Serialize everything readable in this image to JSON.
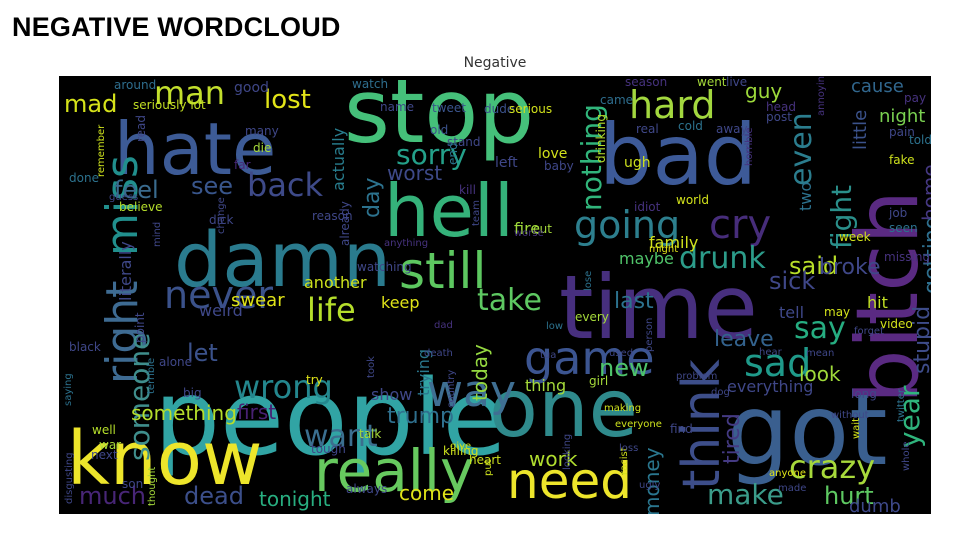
{
  "page": {
    "title": "NEGATIVE WORDCLOUD"
  },
  "figure": {
    "title": "Negative"
  },
  "colors": {
    "background": "#000000"
  },
  "cloud": {
    "words": [
      {
        "id": "people",
        "text": "people",
        "color": "#31a4a4"
      },
      {
        "id": "stop",
        "text": "stop",
        "color": "#45c07a"
      },
      {
        "id": "bad",
        "text": "bad",
        "color": "#3d5a98"
      },
      {
        "id": "time",
        "text": "time",
        "color": "#472f7e"
      },
      {
        "id": "bitch",
        "text": "bitch",
        "color": "#5a2a82"
      },
      {
        "id": "got",
        "text": "got",
        "color": "#3a5f8f"
      },
      {
        "id": "hate",
        "text": "hate",
        "color": "#3d5b96"
      },
      {
        "id": "damn",
        "text": "damn",
        "color": "#2a7b8e"
      },
      {
        "id": "know",
        "text": "know",
        "color": "#ede52b"
      },
      {
        "id": "hell",
        "text": "hell",
        "color": "#35b27a"
      },
      {
        "id": "one",
        "text": "one",
        "color": "#2f8a8c"
      },
      {
        "id": "really",
        "text": "really",
        "color": "#67c95f"
      },
      {
        "id": "need",
        "text": "need",
        "color": "#ede52b"
      },
      {
        "id": "still",
        "text": "still",
        "color": "#5dc760"
      },
      {
        "id": "think",
        "text": "think",
        "color": "#3d4e8a"
      },
      {
        "id": "game",
        "text": "game",
        "color": "#3c5591"
      },
      {
        "id": "right",
        "text": "right",
        "color": "#3e6b92"
      },
      {
        "id": "miss",
        "text": "miss",
        "color": "#218f8d"
      },
      {
        "id": "cry",
        "text": "cry",
        "color": "#472d7b"
      },
      {
        "id": "going",
        "text": "going",
        "color": "#2d7f8e"
      },
      {
        "id": "hard",
        "text": "hard",
        "color": "#a3d83f"
      },
      {
        "id": "man",
        "text": "man",
        "color": "#c3df2d"
      },
      {
        "id": "lost",
        "text": "lost",
        "color": "#e2e418"
      },
      {
        "id": "never",
        "text": "never",
        "color": "#3b528b"
      },
      {
        "id": "way",
        "text": "way",
        "color": "#3f6f93"
      },
      {
        "id": "crazy",
        "text": "crazy",
        "color": "#a7d93b"
      },
      {
        "id": "wrong",
        "text": "wrong",
        "color": "#24878e"
      },
      {
        "id": "life",
        "text": "life",
        "color": "#b5de2b"
      },
      {
        "id": "someone",
        "text": "someone",
        "color": "#3f8e8c"
      },
      {
        "id": "back",
        "text": "back",
        "color": "#3e4a89"
      },
      {
        "id": "sorry",
        "text": "sorry",
        "color": "#24a08a"
      },
      {
        "id": "say",
        "text": "say",
        "color": "#26ad81"
      },
      {
        "id": "sad",
        "text": "sad",
        "color": "#1f9a8a"
      },
      {
        "id": "take",
        "text": "take",
        "color": "#5ec962"
      },
      {
        "id": "want",
        "text": "want",
        "color": "#3b6f8f"
      },
      {
        "id": "make",
        "text": "make",
        "color": "#3b9c8a"
      },
      {
        "id": "drunk",
        "text": "drunk",
        "color": "#2c9c8a"
      },
      {
        "id": "even",
        "text": "even",
        "color": "#2b7d8e"
      },
      {
        "id": "fight",
        "text": "fight",
        "color": "#2a8f8a"
      },
      {
        "id": "year",
        "text": "year",
        "color": "#2fb47c"
      },
      {
        "id": "nothing",
        "text": "nothing",
        "color": "#31b57b"
      },
      {
        "id": "mad",
        "text": "mad",
        "color": "#d5e21a"
      },
      {
        "id": "feel",
        "text": "feel",
        "color": "#3a6b8e"
      },
      {
        "id": "see",
        "text": "see",
        "color": "#39568c"
      },
      {
        "id": "much",
        "text": "much",
        "color": "#482677"
      },
      {
        "id": "dead",
        "text": "dead",
        "color": "#3c4f8a"
      },
      {
        "id": "hurt",
        "text": "hurt",
        "color": "#5ec962"
      },
      {
        "id": "trump",
        "text": "trump",
        "color": "#2f708e"
      },
      {
        "id": "new",
        "text": "new",
        "color": "#4ec36b"
      },
      {
        "id": "stupid",
        "text": "stupid",
        "color": "#3e4c8a"
      },
      {
        "id": "getting",
        "text": "getting",
        "color": "#2e6f8e"
      },
      {
        "id": "said",
        "text": "said",
        "color": "#b8de29"
      },
      {
        "id": "tonight",
        "text": "tonight",
        "color": "#28ae80"
      },
      {
        "id": "come",
        "text": "come",
        "color": "#dfe318"
      },
      {
        "id": "work",
        "text": "work",
        "color": "#b0dd2f"
      },
      {
        "id": "guy",
        "text": "guy",
        "color": "#9dd93b"
      },
      {
        "id": "day",
        "text": "day",
        "color": "#2c728e"
      },
      {
        "id": "today",
        "text": "today",
        "color": "#94d840"
      },
      {
        "id": "tired",
        "text": "tired",
        "color": "#443a83"
      },
      {
        "id": "let",
        "text": "let",
        "color": "#3b528b"
      },
      {
        "id": "sick",
        "text": "sick",
        "color": "#3f4788"
      },
      {
        "id": "look",
        "text": "look",
        "color": "#9fda3a"
      },
      {
        "id": "leave",
        "text": "leave",
        "color": "#33628d"
      },
      {
        "id": "broke",
        "text": "broke",
        "color": "#3f4788"
      },
      {
        "id": "last",
        "text": "last",
        "color": "#2c728e"
      },
      {
        "id": "money",
        "text": "money",
        "color": "#2a768e"
      },
      {
        "id": "worst",
        "text": "worst",
        "color": "#3e4a89"
      },
      {
        "id": "first",
        "text": "first",
        "color": "#482173"
      },
      {
        "id": "dumb",
        "text": "dumb",
        "color": "#3e4989"
      },
      {
        "id": "home",
        "text": "home",
        "color": "#453882"
      },
      {
        "id": "cause",
        "text": "cause",
        "color": "#31678e"
      },
      {
        "id": "night",
        "text": "night",
        "color": "#7ad151"
      },
      {
        "id": "little",
        "text": "little",
        "color": "#3b528b"
      },
      {
        "id": "something",
        "text": "something",
        "color": "#b5de2b"
      },
      {
        "id": "literally",
        "text": "literally",
        "color": "#3f4889"
      },
      {
        "id": "weird",
        "text": "weird",
        "color": "#3f4889"
      },
      {
        "id": "swear",
        "text": "swear",
        "color": "#dfe318"
      },
      {
        "id": "another",
        "text": "another",
        "color": "#cde11d"
      },
      {
        "id": "family",
        "text": "family",
        "color": "#d2e21b"
      },
      {
        "id": "maybe",
        "text": "maybe",
        "color": "#50c46a"
      },
      {
        "id": "tell",
        "text": "tell",
        "color": "#3f4889"
      },
      {
        "id": "everything",
        "text": "everything",
        "color": "#3f4788"
      },
      {
        "id": "show",
        "text": "show",
        "color": "#3f4788"
      },
      {
        "id": "thing",
        "text": "thing",
        "color": "#a5da3a"
      },
      {
        "id": "fire",
        "text": "fire",
        "color": "#9fda3a"
      },
      {
        "id": "actually",
        "text": "actually",
        "color": "#287d8e"
      },
      {
        "id": "keep",
        "text": "keep",
        "color": "#dfe318"
      },
      {
        "id": "trying",
        "text": "trying",
        "color": "#2a788e"
      },
      {
        "id": "two",
        "text": "two",
        "color": "#2c728e"
      },
      {
        "id": "hit",
        "text": "hit",
        "color": "#c2df23"
      },
      {
        "id": "good",
        "text": "good",
        "color": "#3f4788"
      },
      {
        "id": "tweet",
        "text": "tweet",
        "color": "#3a548c"
      },
      {
        "id": "dude",
        "text": "dude",
        "color": "#3b528b"
      },
      {
        "id": "serious",
        "text": "serious",
        "color": "#d2e21b"
      },
      {
        "id": "around",
        "text": "around",
        "color": "#2e6e8e"
      },
      {
        "id": "watch",
        "text": "watch",
        "color": "#2e6e8e"
      },
      {
        "id": "seriously-lot",
        "text": "seriously lot",
        "color": "#c2df23"
      },
      {
        "id": "remember",
        "text": "remember",
        "color": "#cde11d"
      },
      {
        "id": "many",
        "text": "many",
        "color": "#3f4788"
      },
      {
        "id": "die",
        "text": "die",
        "color": "#a5da3a"
      },
      {
        "id": "far",
        "text": "far",
        "color": "#482878"
      },
      {
        "id": "name",
        "text": "name",
        "color": "#3f4788"
      },
      {
        "id": "old",
        "text": "old",
        "color": "#3b528b"
      },
      {
        "id": "stand",
        "text": "stand",
        "color": "#3f4788"
      },
      {
        "id": "end",
        "text": "end",
        "color": "#2a768e"
      },
      {
        "id": "love",
        "text": "love",
        "color": "#d2e21b"
      },
      {
        "id": "left",
        "text": "left",
        "color": "#3f4788"
      },
      {
        "id": "baby",
        "text": "baby",
        "color": "#3f4788"
      },
      {
        "id": "drinking",
        "text": "drinking",
        "color": "#b5de2b"
      },
      {
        "id": "ugh",
        "text": "ugh",
        "color": "#cde11d"
      },
      {
        "id": "real",
        "text": "real",
        "color": "#3f4788"
      },
      {
        "id": "cold",
        "text": "cold",
        "color": "#2c728e"
      },
      {
        "id": "came",
        "text": "came",
        "color": "#2e6e8e"
      },
      {
        "id": "went",
        "text": "went",
        "color": "#a5da3a"
      },
      {
        "id": "live",
        "text": "live",
        "color": "#3f4788"
      },
      {
        "id": "season",
        "text": "season",
        "color": "#46327e"
      },
      {
        "id": "head",
        "text": "head",
        "color": "#46327e"
      },
      {
        "id": "post",
        "text": "post",
        "color": "#3f4788"
      },
      {
        "id": "away",
        "text": "away",
        "color": "#3f4788"
      },
      {
        "id": "annoying",
        "text": "annoying",
        "color": "#46327e"
      },
      {
        "id": "pay",
        "text": "pay",
        "color": "#46327e"
      },
      {
        "id": "told",
        "text": "told",
        "color": "#2c728e"
      },
      {
        "id": "pain",
        "text": "pain",
        "color": "#3f4788"
      },
      {
        "id": "fake",
        "text": "fake",
        "color": "#cde11d"
      },
      {
        "id": "job",
        "text": "job",
        "color": "#3f4788"
      },
      {
        "id": "seen",
        "text": "seen",
        "color": "#2c728e"
      },
      {
        "id": "missing",
        "text": "missing",
        "color": "#46327e"
      },
      {
        "id": "week",
        "text": "week",
        "color": "#d2e21b"
      },
      {
        "id": "horrible",
        "text": "horrible",
        "color": "#46327e"
      },
      {
        "id": "world",
        "text": "world",
        "color": "#d2e21b"
      },
      {
        "id": "idiot",
        "text": "idiot",
        "color": "#46327e"
      },
      {
        "id": "kill",
        "text": "kill",
        "color": "#46327e"
      },
      {
        "id": "cut",
        "text": "cut",
        "color": "#a5da3a"
      },
      {
        "id": "team",
        "text": "team",
        "color": "#3f4788"
      },
      {
        "id": "worse",
        "text": "worse",
        "color": "#46327e"
      },
      {
        "id": "lose",
        "text": "lose",
        "color": "#2c728e"
      },
      {
        "id": "every",
        "text": "every",
        "color": "#a5da3a"
      },
      {
        "id": "might",
        "text": "might",
        "color": "#dfe318"
      },
      {
        "id": "already",
        "text": "already",
        "color": "#3f4788"
      },
      {
        "id": "anything",
        "text": "anything",
        "color": "#46327e"
      },
      {
        "id": "watching",
        "text": "watching",
        "color": "#3f4788"
      },
      {
        "id": "reason",
        "text": "reason",
        "color": "#3f4788"
      },
      {
        "id": "dick",
        "text": "dick",
        "color": "#3f4788"
      },
      {
        "id": "change",
        "text": "change",
        "color": "#3f4788"
      },
      {
        "id": "believe",
        "text": "believe",
        "color": "#b5de2b"
      },
      {
        "id": "guess",
        "text": "guess",
        "color": "#3f4788"
      },
      {
        "id": "done",
        "text": "done",
        "color": "#2c728e"
      },
      {
        "id": "read",
        "text": "read",
        "color": "#3f4788"
      },
      {
        "id": "mind",
        "text": "mind",
        "color": "#3f4788"
      },
      {
        "id": "point",
        "text": "point",
        "color": "#3f4788"
      },
      {
        "id": "alone",
        "text": "alone",
        "color": "#3f4788"
      },
      {
        "id": "black",
        "text": "black",
        "color": "#3f4788"
      },
      {
        "id": "big",
        "text": "big",
        "color": "#3f4788"
      },
      {
        "id": "saying",
        "text": "saying",
        "color": "#2c728e"
      },
      {
        "id": "well",
        "text": "well",
        "color": "#b5de2b"
      },
      {
        "id": "terrible",
        "text": "terrible",
        "color": "#2c728e"
      },
      {
        "id": "war",
        "text": "war",
        "color": "#a5da3a"
      },
      {
        "id": "next",
        "text": "next",
        "color": "#3f4788"
      },
      {
        "id": "disgusting",
        "text": "disgusting",
        "color": "#3f4788"
      },
      {
        "id": "son",
        "text": "son",
        "color": "#3f4788"
      },
      {
        "id": "thought",
        "text": "thought",
        "color": "#a5da3a"
      },
      {
        "id": "tough",
        "text": "tough",
        "color": "#3f4788"
      },
      {
        "id": "always",
        "text": "always",
        "color": "#3f4788"
      },
      {
        "id": "talk",
        "text": "talk",
        "color": "#a5da3a"
      },
      {
        "id": "try",
        "text": "try",
        "color": "#dfe318"
      },
      {
        "id": "took",
        "text": "took",
        "color": "#3f4788"
      },
      {
        "id": "dad",
        "text": "dad",
        "color": "#46327e"
      },
      {
        "id": "death",
        "text": "death",
        "color": "#3f4788"
      },
      {
        "id": "low",
        "text": "low",
        "color": "#2c728e"
      },
      {
        "id": "tua",
        "text": "tua",
        "color": "#3f4788"
      },
      {
        "id": "used",
        "text": "used",
        "color": "#3f4788"
      },
      {
        "id": "person",
        "text": "person",
        "color": "#3f4788"
      },
      {
        "id": "problem",
        "text": "problem",
        "color": "#3f4788"
      },
      {
        "id": "dog",
        "text": "dog",
        "color": "#3f4788"
      },
      {
        "id": "girl",
        "text": "girl",
        "color": "#a5da3a"
      },
      {
        "id": "making",
        "text": "making",
        "color": "#cde11d"
      },
      {
        "id": "everyone",
        "text": "everyone",
        "color": "#cde11d"
      },
      {
        "id": "hear",
        "text": "hear",
        "color": "#3f4788"
      },
      {
        "id": "mean",
        "text": "mean",
        "color": "#3f4788"
      },
      {
        "id": "may",
        "text": "may",
        "color": "#d2e21b"
      },
      {
        "id": "forget",
        "text": "forget",
        "color": "#3f4788"
      },
      {
        "id": "video",
        "text": "video",
        "color": "#d2e21b"
      },
      {
        "id": "long",
        "text": "long",
        "color": "#3f4788"
      },
      {
        "id": "without",
        "text": "without",
        "color": "#3f4788"
      },
      {
        "id": "twitter",
        "text": "twitter",
        "color": "#2c728e"
      },
      {
        "id": "whole",
        "text": "whole",
        "color": "#3f4788"
      },
      {
        "id": "wait",
        "text": "wait",
        "color": "#d2e21b"
      },
      {
        "id": "anyone",
        "text": "anyone",
        "color": "#dfe318"
      },
      {
        "id": "made",
        "text": "made",
        "color": "#3f4788"
      },
      {
        "id": "racist",
        "text": "racist",
        "color": "#d2e21b"
      },
      {
        "id": "ugly",
        "text": "ugly",
        "color": "#3f4788"
      },
      {
        "id": "loss",
        "text": "loss",
        "color": "#3f4788"
      },
      {
        "id": "find",
        "text": "find",
        "color": "#3f4788"
      },
      {
        "id": "looking",
        "text": "looking",
        "color": "#3f4788"
      },
      {
        "id": "heart",
        "text": "heart",
        "color": "#cde11d"
      },
      {
        "id": "put",
        "text": "put",
        "color": "#cde11d"
      },
      {
        "id": "give",
        "text": "give",
        "color": "#cde11d"
      },
      {
        "id": "killing",
        "text": "killing",
        "color": "#cde11d"
      },
      {
        "id": "country",
        "text": "country",
        "color": "#3f4788"
      }
    ]
  }
}
